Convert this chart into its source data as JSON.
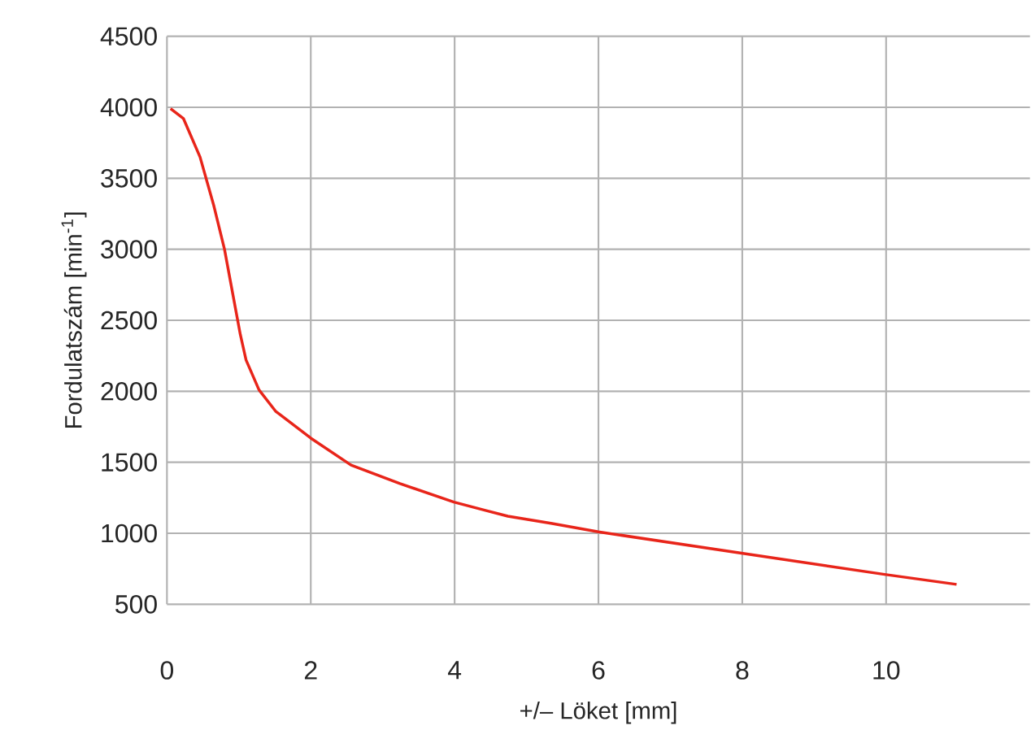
{
  "chart_data": {
    "type": "line",
    "xlabel": "+/– Löket [mm]",
    "ylabel": "Fordulatszám [min$^{-1}$]",
    "xlim": [
      0,
      12
    ],
    "ylim": [
      500,
      4500
    ],
    "xticks": [
      0,
      2,
      4,
      6,
      8,
      10
    ],
    "yticks": [
      500,
      1000,
      1500,
      2000,
      2500,
      3000,
      3500,
      4000,
      4500
    ],
    "grid": true,
    "series": [
      {
        "color": "#e8251a",
        "x": [
          0.05,
          0.23,
          0.46,
          0.65,
          0.8,
          0.91,
          1.02,
          1.1,
          1.28,
          1.51,
          2.0,
          2.56,
          3.24,
          3.99,
          4.44,
          4.74,
          5.34,
          6.0,
          7.99,
          9.98,
          10.98
        ],
        "values": [
          3990,
          3920,
          3650,
          3310,
          3000,
          2700,
          2400,
          2220,
          2010,
          1860,
          1670,
          1480,
          1350,
          1220,
          1160,
          1120,
          1070,
          1010,
          860,
          710,
          640
        ]
      }
    ]
  }
}
